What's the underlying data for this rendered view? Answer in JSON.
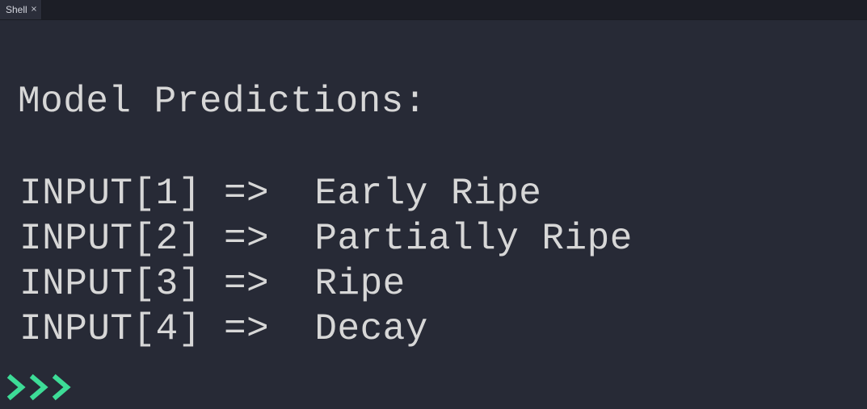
{
  "tab": {
    "label": "Shell",
    "close_glyph": "×"
  },
  "shell": {
    "heading": "Model Predictions:",
    "lines": [
      "INPUT[1] =>  Early Ripe",
      "INPUT[2] =>  Partially Ripe",
      "INPUT[3] =>  Ripe",
      "INPUT[4] =>  Decay"
    ],
    "prompt_icon": "prompt-chevrons-icon",
    "prompt_color": "#3ddc97",
    "text_color": "#d7d7d7",
    "background": "#272a36"
  }
}
